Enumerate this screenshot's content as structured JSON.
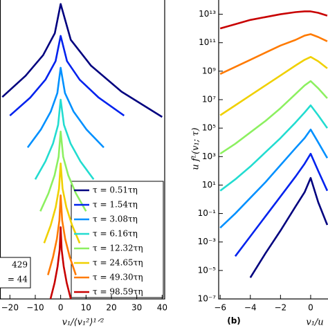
{
  "chart_data": [
    {
      "type": "line",
      "xlabel": "v₁/⟨v₁²⟩¹ᐟ²",
      "xlim": [
        -23.9,
        41
      ],
      "ylim": [
        0,
        45
      ],
      "xticks": [
        {
          "value": -20,
          "label": "−20"
        },
        {
          "value": -10,
          "label": "−10"
        },
        0,
        10,
        20,
        30,
        40
      ],
      "legend": true,
      "legend_loc": "lower right",
      "annotations": [
        "429",
        "= 44"
      ],
      "series": [
        {
          "name": "τ = 0.51τη",
          "color": "#00007f",
          "x": [
            -23,
            -13.8,
            -6.9,
            -2.3,
            0,
            4,
            12,
            24,
            40
          ],
          "values": [
            30.4,
            33.6,
            36.7,
            40.0,
            44.4,
            39.0,
            35.1,
            31.2,
            27.4
          ]
        },
        {
          "name": "τ = 1.54τη",
          "color": "#0022ee",
          "x": [
            -20,
            -12,
            -6,
            -2,
            0,
            2.5,
            7.5,
            15,
            25
          ],
          "values": [
            27.6,
            30.3,
            33.0,
            35.8,
            39.6,
            35.8,
            33.0,
            30.3,
            27.6
          ]
        },
        {
          "name": "τ = 3.08τη",
          "color": "#0090ff",
          "x": [
            -13,
            -7.8,
            -3.9,
            -1.3,
            0,
            1.7,
            5.1,
            10.2,
            17
          ],
          "values": [
            22.8,
            25.5,
            28.2,
            31.0,
            34.8,
            31.0,
            28.2,
            25.5,
            22.8
          ]
        },
        {
          "name": "τ = 6.16τη",
          "color": "#22dcd0",
          "x": [
            -10,
            -6,
            -3,
            -1,
            0,
            1.3,
            3.9,
            7.8,
            13
          ],
          "values": [
            18.0,
            20.7,
            23.4,
            26.2,
            30.0,
            26.2,
            23.4,
            20.7,
            18.0
          ]
        },
        {
          "name": "τ = 12.32τη",
          "color": "#8cf060",
          "x": [
            -8,
            -4.8,
            -2.4,
            -0.8,
            0,
            1,
            3,
            6,
            10
          ],
          "values": [
            13.2,
            15.9,
            18.6,
            21.4,
            25.2,
            21.4,
            18.6,
            15.9,
            13.2
          ]
        },
        {
          "name": "τ = 24.65τη",
          "color": "#f0d000",
          "x": [
            -6.5,
            -3.9,
            -1.95,
            -0.65,
            0,
            0.75,
            2.25,
            4.5,
            7.5
          ],
          "values": [
            8.4,
            11.1,
            13.8,
            16.6,
            20.4,
            16.6,
            13.8,
            11.1,
            8.4
          ]
        },
        {
          "name": "τ = 49.30τη",
          "color": "#ff7a00",
          "x": [
            -5,
            -3,
            -1.5,
            -0.5,
            0,
            0.6,
            1.8,
            3.6,
            6
          ],
          "values": [
            3.6,
            6.3,
            9.0,
            11.8,
            15.6,
            11.8,
            9.0,
            6.3,
            3.6
          ]
        },
        {
          "name": "τ = 98.59τη",
          "color": "#c80000",
          "x": [
            -4,
            -2.4,
            -1.2,
            -0.4,
            0,
            0.4,
            1.2,
            2.4,
            4
          ],
          "values": [
            0,
            2.4,
            4.9,
            7.4,
            10.8,
            7.4,
            4.9,
            2.4,
            0
          ]
        }
      ]
    },
    {
      "type": "line",
      "xlabel": "v₁/u",
      "ylabel": "u fᴸ(v₁; τ)",
      "log_y": true,
      "xlim": [
        -6.1,
        1.15
      ],
      "ylim": [
        1e-07,
        100000000000000.0
      ],
      "xticks": [
        {
          "value": -6,
          "label": "−6"
        },
        {
          "value": -4,
          "label": "−4"
        },
        {
          "value": -2,
          "label": "−2"
        },
        0
      ],
      "yticks": [
        {
          "value": 1e-07,
          "label": "10⁻⁷"
        },
        {
          "value": 1e-05,
          "label": "10⁻⁵"
        },
        {
          "value": 0.001,
          "label": "10⁻³"
        },
        {
          "value": 0.1,
          "label": "10⁻¹"
        },
        {
          "value": 10,
          "label": "10¹"
        },
        {
          "value": 1000,
          "label": "10³"
        },
        {
          "value": 100000,
          "label": "10⁵"
        },
        {
          "value": 10000000,
          "label": "10⁷"
        },
        {
          "value": 1000000000.0,
          "label": "10⁹"
        },
        {
          "value": 100000000000.0,
          "label": "10¹¹"
        },
        {
          "value": 10000000000000.0,
          "label": "10¹³"
        }
      ],
      "annotations": [
        "(b)"
      ],
      "x": [
        -6,
        -5,
        -4,
        -3,
        -2,
        -1,
        -0.4,
        0,
        0.5,
        1.1
      ],
      "series": [
        {
          "color": "#00007f",
          "values": [
            null,
            null,
            3.16e-06,
            0.000158,
            0.00631,
            0.316,
            3.16,
            31.6,
            0.631,
            0.0158
          ]
        },
        {
          "color": "#0022ee",
          "values": [
            null,
            0.0001,
            0.00251,
            0.0631,
            1.58,
            39.8,
            316,
            1580,
            100,
            3.98
          ]
        },
        {
          "color": "#0090ff",
          "values": [
            0.01,
            0.1,
            1.26,
            15.8,
            251,
            3980,
            20000,
            79400,
            10000,
            794
          ]
        },
        {
          "color": "#22dcd0",
          "values": [
            3.98,
            25.1,
            200,
            2000,
            20000,
            251000,
            1260000,
            3980000,
            794000,
            100000
          ]
        },
        {
          "color": "#8cf060",
          "values": [
            1580,
            7940,
            50100,
            316000,
            2510000,
            25100000,
            100000000.0,
            200000000.0,
            63100000,
            12600000
          ]
        },
        {
          "color": "#f0d000",
          "values": [
            794000,
            3980000,
            20000000.0,
            100000000.0,
            501000000.0,
            2510000000.0,
            6310000000.0,
            10000000000.0,
            5010000000.0,
            1580000000.0
          ]
        },
        {
          "color": "#ff7a00",
          "values": [
            631000000.0,
            2000000000.0,
            6310000000.0,
            20000000000.0,
            63100000000.0,
            158000000000.0,
            316000000000.0,
            398000000000.0,
            251000000000.0,
            126000000000.0
          ]
        },
        {
          "color": "#c80000",
          "values": [
            1000000000000.0,
            2000000000000.0,
            3980000000000.0,
            6310000000000.0,
            10000000000000.0,
            14100000000000.0,
            15800000000000.0,
            15800000000000.0,
            12600000000000.0,
            7940000000000.0
          ]
        }
      ]
    }
  ]
}
